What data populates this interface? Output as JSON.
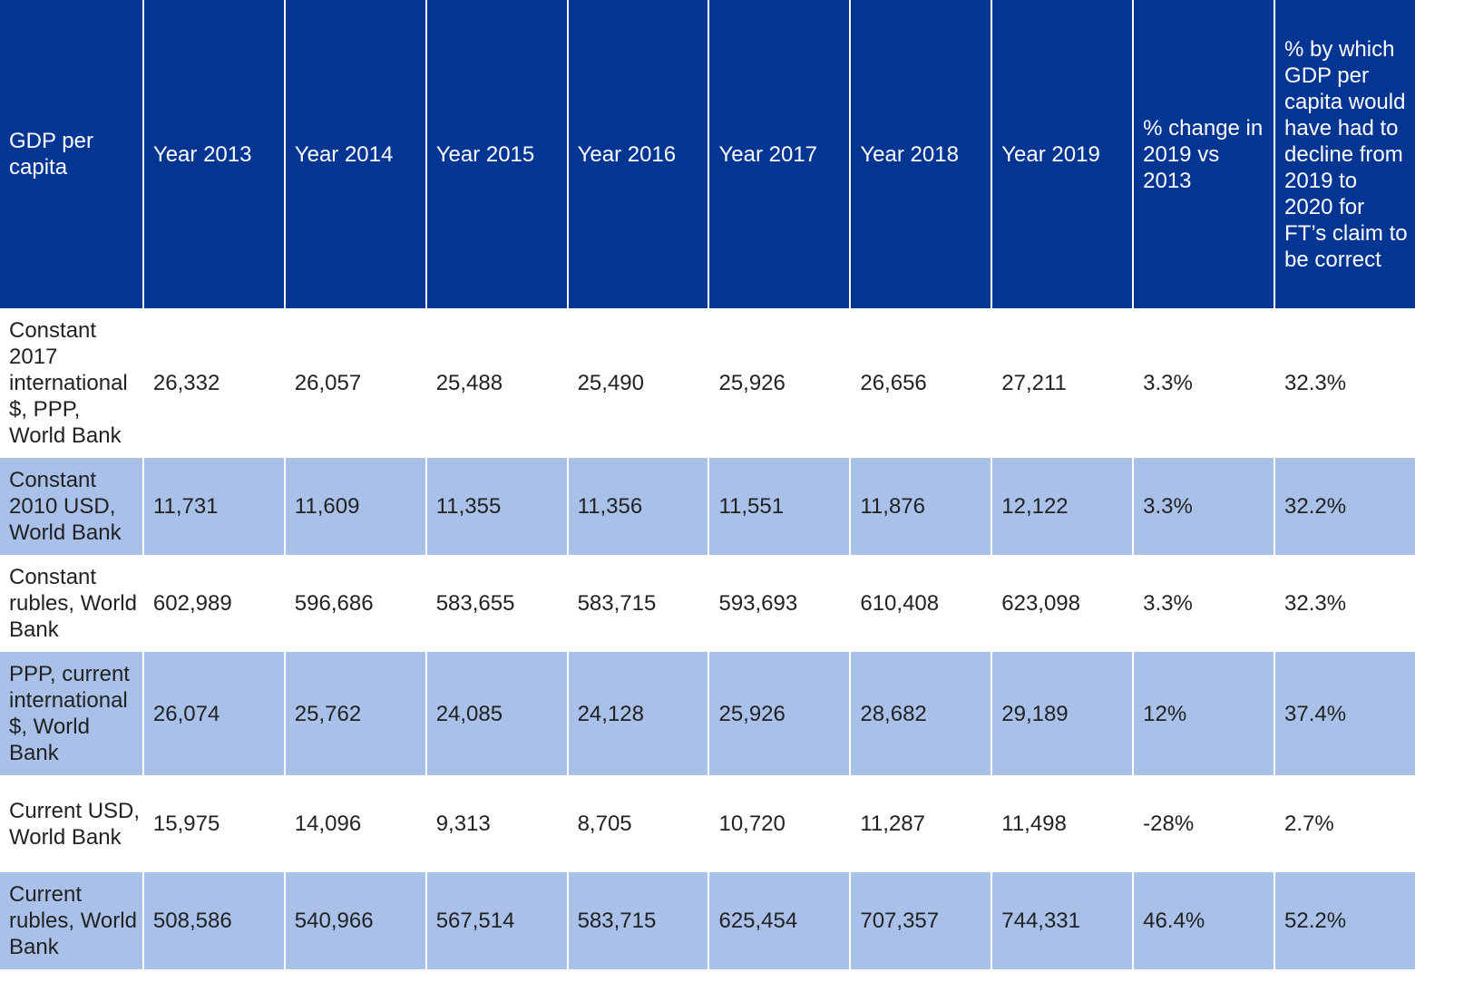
{
  "chart_data": {
    "type": "table",
    "columns": [
      "GDP per capita",
      "Year 2013",
      "Year 2014",
      "Year 2015",
      "Year 2016",
      "Year 2017",
      "Year 2018",
      "Year 2019",
      "% change in 2019 vs 2013",
      "% by which GDP per capita would have had to decline from 2019 to 2020 for FT’s claim to be correct"
    ],
    "rows": [
      [
        "Constant 2017 international $, PPP, World Bank",
        "26,332",
        "26,057",
        "25,488",
        "25,490",
        "25,926",
        "26,656",
        "27,211",
        "3.3%",
        "32.3%"
      ],
      [
        "Constant 2010 USD, World Bank",
        "11,731",
        "11,609",
        "11,355",
        "11,356",
        "11,551",
        "11,876",
        "12,122",
        "3.3%",
        "32.2%"
      ],
      [
        "Constant rubles, World Bank",
        "602,989",
        "596,686",
        "583,655",
        "583,715",
        "593,693",
        "610,408",
        "623,098",
        "3.3%",
        "32.3%"
      ],
      [
        "PPP, current international $, World Bank",
        "26,074",
        "25,762",
        "24,085",
        "24,128",
        "25,926",
        "28,682",
        "29,189",
        "12%",
        "37.4%"
      ],
      [
        "Current USD, World Bank",
        "15,975",
        "14,096",
        "9,313",
        "8,705",
        "10,720",
        "11,287",
        "11,498",
        "-28%",
        "2.7%"
      ],
      [
        "Current rubles, World Bank",
        "508,586",
        "540,966",
        "567,514",
        "583,715",
        "625,454",
        "707,357",
        "744,331",
        "46.4%",
        "52.2%"
      ]
    ],
    "colors": {
      "header_background": "#033593",
      "header_text": "#ffffff",
      "stripe_background": "#a9c0e8",
      "plain_background": "#ffffff",
      "body_text": "#222222"
    }
  }
}
